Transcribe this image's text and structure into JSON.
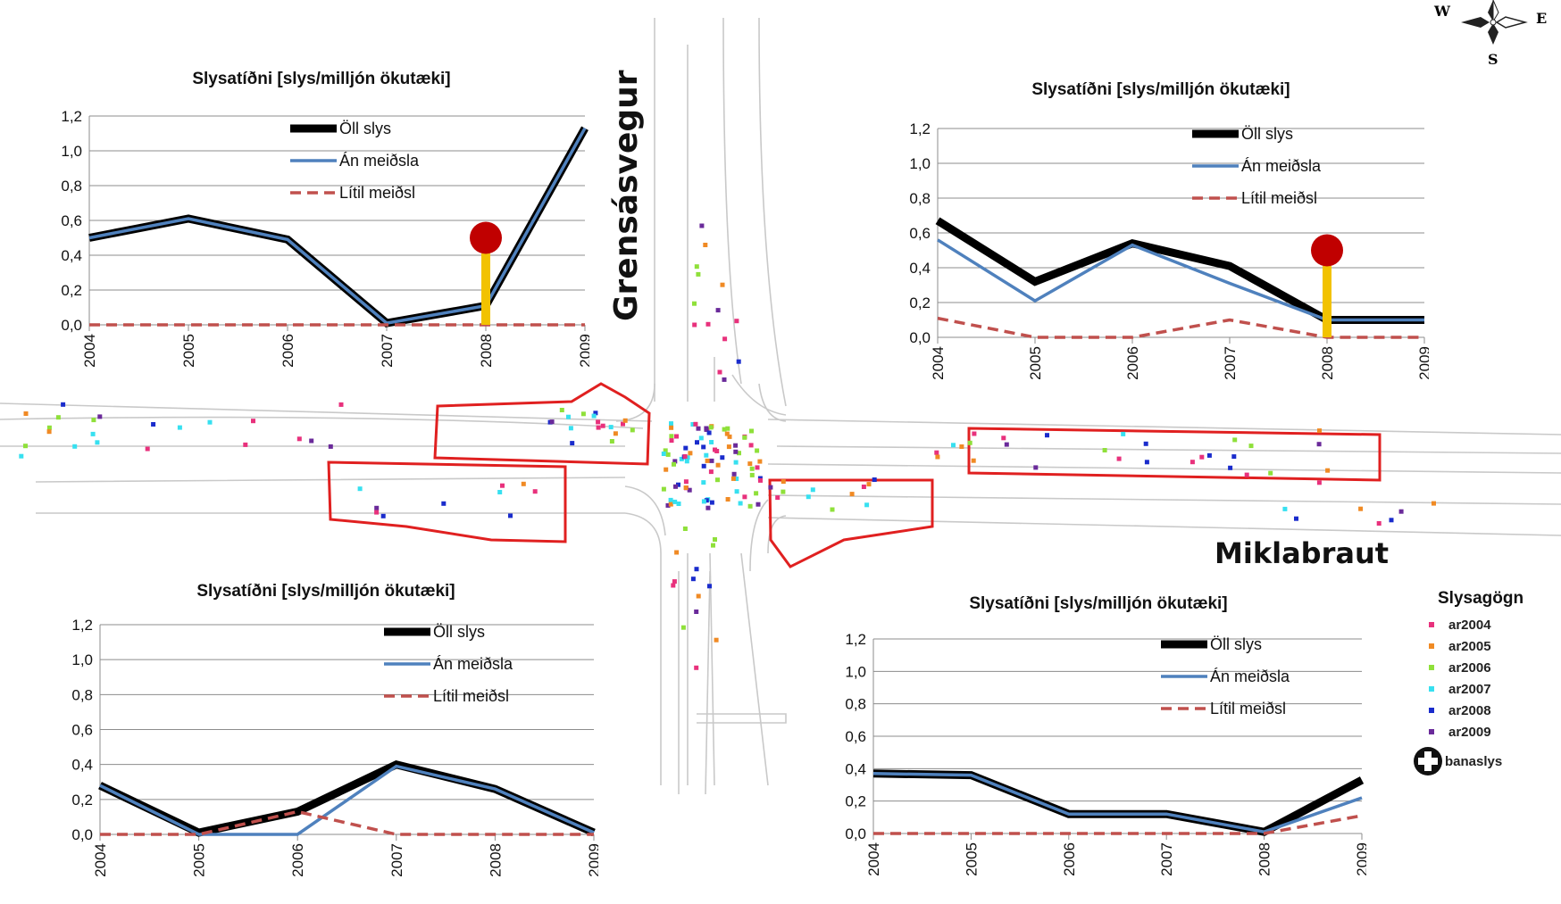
{
  "streets": {
    "vertical": "Grensásvegur",
    "horizontal": "Miklabraut"
  },
  "compass": {
    "west": "W",
    "east": "E",
    "south": "S"
  },
  "legend": {
    "title": "Slysagögn",
    "items": [
      {
        "label": "ar2004",
        "color": "#e8317c"
      },
      {
        "label": "ar2005",
        "color": "#f08a24"
      },
      {
        "label": "ar2006",
        "color": "#8fe03a"
      },
      {
        "label": "ar2007",
        "color": "#37e0f0"
      },
      {
        "label": "ar2008",
        "color": "#1a2ccc"
      },
      {
        "label": "ar2009",
        "color": "#6a2a9a"
      }
    ],
    "fatal_label": "banaslys"
  },
  "chart_data": [
    {
      "type": "line",
      "title": "Slysatíðni [slys/milljón ökutæki]",
      "x": [
        "2004",
        "2005",
        "2006",
        "2007",
        "2008",
        "2009"
      ],
      "ylim": [
        0,
        1.2
      ],
      "yticks": [
        "0,0",
        "0,2",
        "0,4",
        "0,6",
        "0,8",
        "1,0",
        "1,2"
      ],
      "series": [
        {
          "name": "Öll slys",
          "values": [
            0.5,
            0.61,
            0.49,
            0.01,
            0.11,
            1.13
          ]
        },
        {
          "name": "Án meiðsla",
          "values": [
            0.5,
            0.61,
            0.49,
            0.01,
            0.11,
            1.13
          ]
        },
        {
          "name": "Lítil meiðsl",
          "values": [
            0,
            0,
            0,
            0,
            0,
            0
          ]
        }
      ],
      "fatal_marker_year": "2008"
    },
    {
      "type": "line",
      "title": "Slysatíðni [slys/milljón ökutæki]",
      "x": [
        "2004",
        "2005",
        "2006",
        "2007",
        "2008",
        "2009"
      ],
      "ylim": [
        0,
        1.2
      ],
      "yticks": [
        "0,0",
        "0,2",
        "0,4",
        "0,6",
        "0,8",
        "1,0",
        "1,2"
      ],
      "series": [
        {
          "name": "Öll slys",
          "values": [
            0.67,
            0.32,
            0.54,
            0.41,
            0.1,
            0.1
          ]
        },
        {
          "name": "Án meiðsla",
          "values": [
            0.56,
            0.21,
            0.53,
            0.31,
            0.1,
            0.1
          ]
        },
        {
          "name": "Lítil meiðsl",
          "values": [
            0.11,
            0,
            0,
            0.1,
            0,
            0
          ]
        }
      ],
      "fatal_marker_year": "2008"
    },
    {
      "type": "line",
      "title": "Slysatíðni [slys/milljón ökutæki]",
      "x": [
        "2004",
        "2005",
        "2006",
        "2007",
        "2008",
        "2009"
      ],
      "ylim": [
        0,
        1.2
      ],
      "yticks": [
        "0,0",
        "0,2",
        "0,4",
        "0,6",
        "0,8",
        "1,0",
        "1,2"
      ],
      "series": [
        {
          "name": "Öll slys",
          "values": [
            0.28,
            0.01,
            0.13,
            0.4,
            0.26,
            0.01
          ]
        },
        {
          "name": "Án meiðsla",
          "values": [
            0.28,
            0,
            0,
            0.39,
            0.26,
            0.01
          ]
        },
        {
          "name": "Lítil meiðsl",
          "values": [
            0,
            0,
            0.13,
            0,
            0,
            0
          ]
        }
      ]
    },
    {
      "type": "line",
      "title": "Slysatíðni [slys/milljón ökutæki]",
      "x": [
        "2004",
        "2005",
        "2006",
        "2007",
        "2008",
        "2009"
      ],
      "ylim": [
        0,
        1.2
      ],
      "yticks": [
        "0,0",
        "0,2",
        "0,4",
        "0,6",
        "0,8",
        "1,0",
        "1,2"
      ],
      "series": [
        {
          "name": "Öll slys",
          "values": [
            0.37,
            0.36,
            0.12,
            0.12,
            0.01,
            0.33
          ]
        },
        {
          "name": "Án meiðsla",
          "values": [
            0.37,
            0.36,
            0.12,
            0.12,
            0.01,
            0.22
          ]
        },
        {
          "name": "Lítil meiðsl",
          "values": [
            0,
            0,
            0,
            0,
            0,
            0.11
          ]
        }
      ]
    }
  ]
}
